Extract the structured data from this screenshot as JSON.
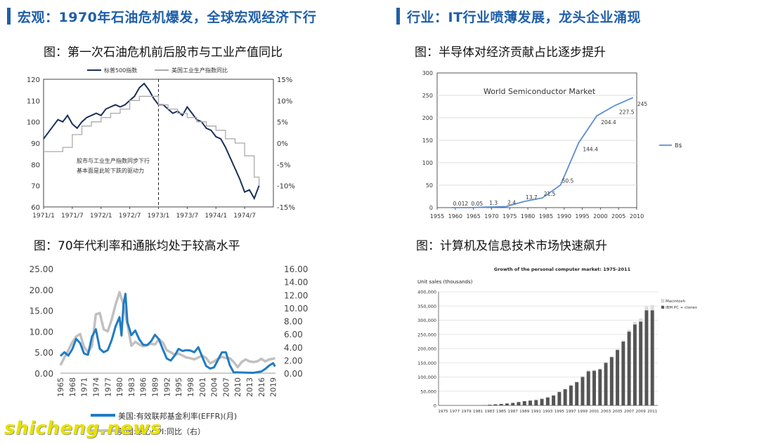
{
  "headers": {
    "left": "宏观：1970年石油危机爆发，全球宏观经济下行",
    "right": "行业：IT行业喷薄发展，龙头企业涌现"
  },
  "captions": {
    "tl": "图：第一次石油危机前后股市与工业产值同比",
    "tr": "图：半导体对经济贡献占比逐步提升",
    "bl": "图：70年代利率和通胀均处于较高水平",
    "br": "图：计算机及信息技术市场快速飙升"
  },
  "watermark": "shicheng.news",
  "chart_data": [
    {
      "id": "oil_crisis",
      "type": "line",
      "legend": [
        "标普500指数",
        "美国工业生产指数同比"
      ],
      "colors": [
        "#1a2f5a",
        "#aaaaaa"
      ],
      "x_ticks": [
        "1971/1",
        "1971/7",
        "1972/1",
        "1972/7",
        "1973/1",
        "1973/7",
        "1974/1",
        "1974/7"
      ],
      "ylim_left": [
        60,
        120
      ],
      "yticks_left": [
        "60",
        "70",
        "80",
        "90",
        "100",
        "110",
        "120"
      ],
      "ylim_right": [
        -15,
        15
      ],
      "yticks_right": [
        "-15%",
        "-10%",
        "-5%",
        "0%",
        "5%",
        "10%",
        "15%"
      ],
      "annotation": [
        "股市与工业生产指数同步下行",
        "基本面是此轮下跌的驱动力"
      ],
      "x_range": [
        0,
        48
      ],
      "series": [
        {
          "name": "标普500指数",
          "axis": "left",
          "x": [
            0,
            1,
            2,
            3,
            4,
            5,
            6,
            7,
            8,
            9,
            10,
            11,
            12,
            13,
            14,
            15,
            16,
            17,
            18,
            19,
            20,
            21,
            22,
            23,
            24,
            25,
            26,
            27,
            28,
            29,
            30,
            31,
            32,
            33,
            34,
            35,
            36,
            37,
            38,
            39,
            40,
            41,
            42,
            43,
            44,
            45
          ],
          "values": [
            92,
            95,
            98,
            101,
            100,
            103,
            99,
            97,
            100,
            102,
            103,
            104,
            103,
            106,
            107,
            108,
            107,
            108,
            110,
            112,
            116,
            118,
            115,
            111,
            108,
            108,
            106,
            104,
            105,
            103,
            107,
            104,
            101,
            100,
            97,
            96,
            93,
            92,
            88,
            83,
            78,
            73,
            67,
            68,
            64,
            70
          ]
        },
        {
          "name": "美国工业生产指数同比",
          "axis": "right",
          "x": [
            0,
            2,
            4,
            6,
            8,
            10,
            12,
            14,
            16,
            18,
            20,
            22,
            24,
            26,
            28,
            30,
            32,
            34,
            36,
            38,
            40,
            42,
            44,
            45
          ],
          "values": [
            -2,
            -2,
            -1,
            2,
            4,
            5,
            6,
            7,
            8,
            10,
            11,
            11,
            9,
            8,
            7,
            6,
            5,
            4,
            3,
            1,
            0,
            -3,
            -8,
            -10
          ]
        }
      ]
    },
    {
      "id": "semiconductor",
      "type": "line",
      "title": "World Semiconductor Market",
      "legend": [
        "B$"
      ],
      "ylim": [
        0,
        300
      ],
      "yticks": [
        "0",
        "50",
        "100",
        "150",
        "200",
        "250",
        "300"
      ],
      "categories": [
        "1955",
        "1960",
        "1965",
        "1970",
        "1975",
        "1980",
        "1985",
        "1990",
        "1995",
        "2000",
        "2005",
        "2010"
      ],
      "x": [
        1959,
        1964,
        1969,
        1974,
        1979,
        1984,
        1989,
        1994,
        1999,
        2004,
        2009
      ],
      "values": [
        0.012,
        0.05,
        1.3,
        2.4,
        13.7,
        21.5,
        50.5,
        144.4,
        204.4,
        227.5,
        245
      ],
      "labels": [
        "0.012",
        "0.05",
        "1.3",
        "2.4",
        "13.7",
        "21.5",
        "50.5",
        "144.4",
        "204.4",
        "227.5",
        "245"
      ]
    },
    {
      "id": "rates_inflation",
      "type": "line",
      "ylim_left": [
        0,
        25
      ],
      "yticks_left": [
        "0.00",
        "5.00",
        "10.00",
        "15.00",
        "20.00",
        "25.00"
      ],
      "ylim_right": [
        0,
        16
      ],
      "yticks_right": [
        "0.00",
        "2.00",
        "4.00",
        "6.00",
        "8.00",
        "10.00",
        "12.00",
        "14.00",
        "16.00"
      ],
      "x_ticks": [
        "1965",
        "1968",
        "1971",
        "1974",
        "1977",
        "1980",
        "1983",
        "1986",
        "1989",
        "1992",
        "1995",
        "1998",
        "2001",
        "2004",
        "2007",
        "2010",
        "2013",
        "2016",
        "2019"
      ],
      "legend": [
        "美国:有效联邦基金利率(EFFR)(月)",
        "美国:核心CPI:同比（右）"
      ],
      "colors": [
        "#1f7bc4",
        "#c0c0c0"
      ],
      "series": [
        {
          "name": "美国:有效联邦基金利率(EFFR)(月)",
          "axis": "left",
          "x": [
            1965,
            1966,
            1967,
            1968,
            1969,
            1970,
            1971,
            1972,
            1973,
            1974,
            1975,
            1976,
            1977,
            1978,
            1979,
            1980,
            1980.5,
            1981,
            1981.5,
            1982,
            1983,
            1984,
            1985,
            1986,
            1987,
            1988,
            1989,
            1990,
            1991,
            1992,
            1993,
            1994,
            1995,
            1996,
            1997,
            1998,
            1999,
            2000,
            2001,
            2002,
            2003,
            2004,
            2005,
            2006,
            2007,
            2008,
            2009,
            2010,
            2012,
            2014,
            2016,
            2017,
            2018,
            2019,
            2019.5
          ],
          "values": [
            4.1,
            5.0,
            4.2,
            5.7,
            8.2,
            7.2,
            4.7,
            4.4,
            8.7,
            10.5,
            5.8,
            5.0,
            5.5,
            7.9,
            11.2,
            13.4,
            9.0,
            16.4,
            19.0,
            12.2,
            9.1,
            10.2,
            8.1,
            6.8,
            6.7,
            7.6,
            9.2,
            8.1,
            5.7,
            3.5,
            3.0,
            4.2,
            5.8,
            5.3,
            5.5,
            5.4,
            5.0,
            6.2,
            3.9,
            1.7,
            1.1,
            1.4,
            3.2,
            5.0,
            5.0,
            1.9,
            0.16,
            0.18,
            0.14,
            0.09,
            0.4,
            1.0,
            1.8,
            2.4,
            1.6
          ]
        },
        {
          "name": "美国:核心CPI:同比（右）",
          "axis": "right",
          "x": [
            1965,
            1966,
            1967,
            1968,
            1969,
            1970,
            1971,
            1972,
            1973,
            1974,
            1975,
            1976,
            1977,
            1978,
            1979,
            1980,
            1981,
            1982,
            1983,
            1984,
            1985,
            1986,
            1987,
            1988,
            1989,
            1990,
            1991,
            1992,
            1993,
            1994,
            1995,
            1996,
            1997,
            1998,
            1999,
            2000,
            2001,
            2002,
            2003,
            2004,
            2005,
            2006,
            2007,
            2008,
            2009,
            2010,
            2011,
            2012,
            2013,
            2014,
            2015,
            2016,
            2017,
            2018,
            2019,
            2019.5
          ],
          "values": [
            1.2,
            2.4,
            3.5,
            4.7,
            5.6,
            6.0,
            4.0,
            3.2,
            4.1,
            9.0,
            9.2,
            6.7,
            6.4,
            8.2,
            10.5,
            12.4,
            10.5,
            7.5,
            4.2,
            4.8,
            4.4,
            4.1,
            4.3,
            4.5,
            4.4,
            5.2,
            4.7,
            3.5,
            3.2,
            2.8,
            3.0,
            2.7,
            2.4,
            2.3,
            2.1,
            2.4,
            2.7,
            2.3,
            1.5,
            1.8,
            2.2,
            2.5,
            2.3,
            2.3,
            1.7,
            0.9,
            1.7,
            2.1,
            1.8,
            1.7,
            1.8,
            2.2,
            1.8,
            2.1,
            2.2,
            2.3
          ]
        }
      ]
    },
    {
      "id": "pc_market",
      "type": "bar",
      "title": "Growth of the personal computer market: 1975-2011",
      "ylabel": "Unit sales (thousands)",
      "ylim": [
        0,
        400000
      ],
      "yticks": [
        "0",
        "50,000",
        "100,000",
        "150,000",
        "200,000",
        "250,000",
        "300,000",
        "350,000",
        "400,000"
      ],
      "x_ticks": [
        "1975",
        "1977",
        "1979",
        "1981",
        "1983",
        "1985",
        "1987",
        "1989",
        "1991",
        "1993",
        "1995",
        "1997",
        "1999",
        "2001",
        "2003",
        "2005",
        "2007",
        "2009",
        "2011"
      ],
      "legend": [
        "Macintosh",
        "IBM PC + clones"
      ],
      "colors": [
        "#dddddd",
        "#555555"
      ],
      "categories": [
        "1975",
        "1976",
        "1977",
        "1978",
        "1979",
        "1980",
        "1981",
        "1982",
        "1983",
        "1984",
        "1985",
        "1986",
        "1987",
        "1988",
        "1989",
        "1990",
        "1991",
        "1992",
        "1993",
        "1994",
        "1995",
        "1996",
        "1997",
        "1998",
        "1999",
        "2000",
        "2001",
        "2002",
        "2003",
        "2004",
        "2005",
        "2006",
        "2007",
        "2008",
        "2009",
        "2010",
        "2011"
      ],
      "series": [
        {
          "name": "IBM PC + clones",
          "values": [
            0,
            0,
            0,
            0,
            0,
            0,
            100,
            1000,
            2500,
            4000,
            5500,
            7000,
            9000,
            12000,
            15000,
            17000,
            19000,
            23000,
            28000,
            35000,
            47000,
            57000,
            70000,
            82000,
            100000,
            120000,
            122000,
            127000,
            150000,
            170000,
            195000,
            225000,
            260000,
            285000,
            295000,
            335000,
            335000
          ]
        },
        {
          "name": "Macintosh",
          "values": [
            0,
            0,
            0,
            0,
            0,
            0,
            0,
            0,
            0,
            300,
            500,
            700,
            900,
            1100,
            1300,
            1500,
            2000,
            2500,
            3000,
            3200,
            3500,
            2500,
            2000,
            2500,
            3500,
            4000,
            3500,
            3000,
            3300,
            3500,
            4500,
            5500,
            7000,
            9500,
            11000,
            14000,
            18000
          ]
        }
      ]
    }
  ]
}
